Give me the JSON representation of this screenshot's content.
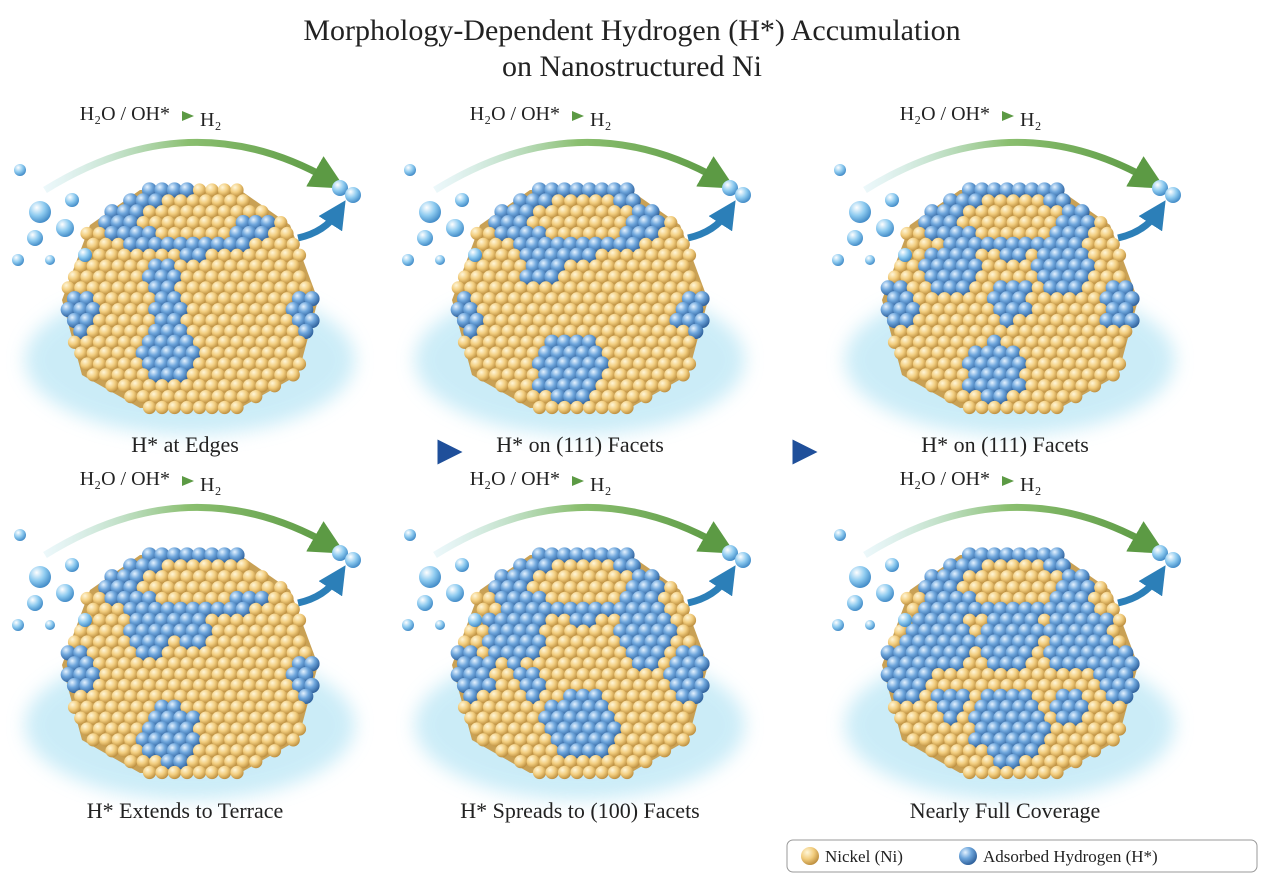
{
  "header": {
    "title_line1": "Morphology-Dependent Hydrogen (H*) Accumulation",
    "title_line2": "on Nanostructured Ni"
  },
  "reaction": {
    "reactants": "H₂O / OH*",
    "product": "H₂"
  },
  "panels": [
    {
      "label": "H* at Edges"
    },
    {
      "label": "H* on (111) Facets"
    },
    {
      "label": "H* on (111) Facets"
    },
    {
      "label": "H* Extends to Terrace"
    },
    {
      "label": "H* Spreads to (100) Facets"
    },
    {
      "label": "Nearly Full Coverage"
    }
  ],
  "legend": {
    "nickel": "Nickel (Ni)",
    "hydrogen": "Adsorbed Hydrogen (H*)"
  }
}
